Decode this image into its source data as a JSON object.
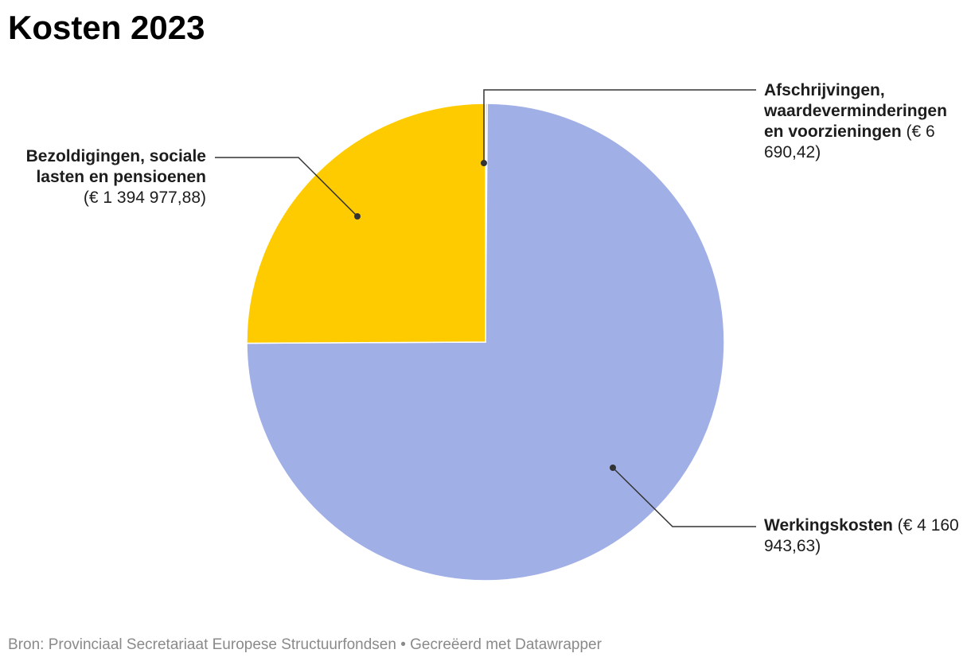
{
  "chart_data": {
    "type": "pie",
    "title": "Kosten 2023",
    "slices": [
      {
        "label": "Werkingskosten",
        "value_text": "(€ 4 160 943,63)",
        "value": 4160943.63,
        "color": "#a0afe6"
      },
      {
        "label": "Bezoldigingen, sociale lasten en pensioenen",
        "value_text": "(€ 1 394 977,88)",
        "value": 1394977.88,
        "color": "#fecb00"
      },
      {
        "label": "Afschrijvingen, waardeverminderingen en voorzieningen",
        "value_text": "(€ 6 690,42)",
        "value": 6690.42,
        "color": "#a0afe6"
      }
    ]
  },
  "footer": {
    "source": "Bron: Provinciaal Secretariaat Europese Structuurfondsen • Gecreëerd met Datawrapper"
  }
}
